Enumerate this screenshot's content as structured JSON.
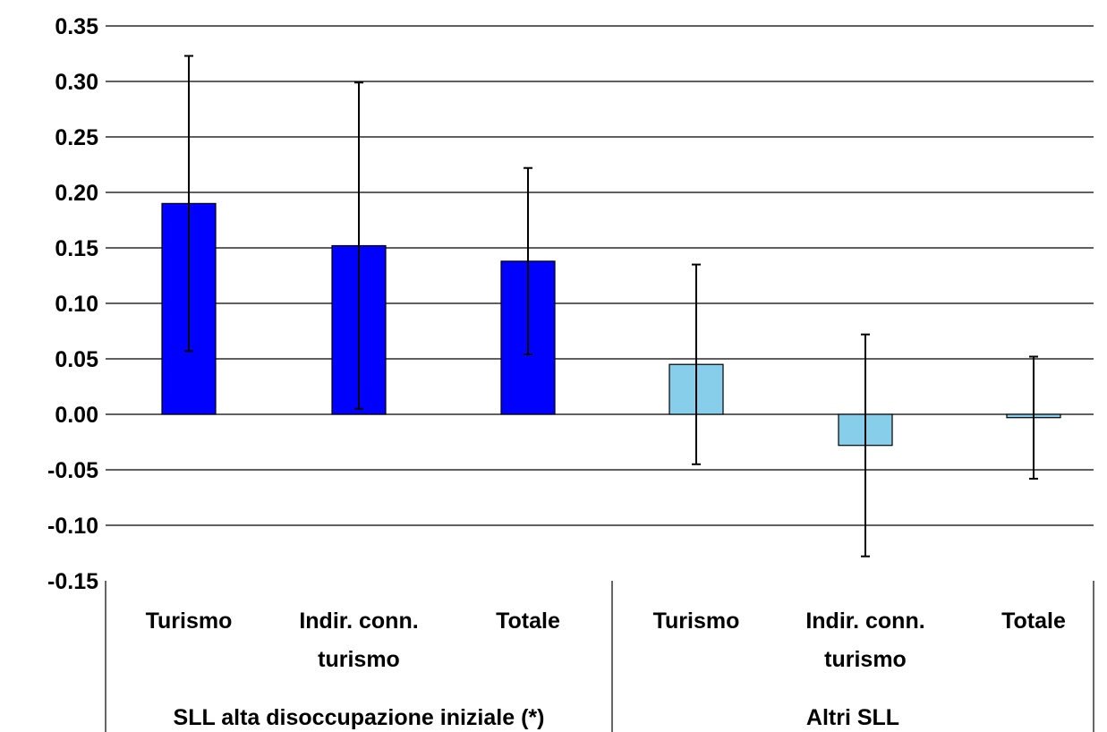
{
  "chart_data": {
    "type": "bar",
    "ylim": [
      -0.15,
      0.35
    ],
    "y_ticks": [
      "0.35",
      "0.30",
      "0.25",
      "0.20",
      "0.15",
      "0.10",
      "0.05",
      "0.00",
      "-0.05",
      "-0.10",
      "-0.15"
    ],
    "grid": true,
    "groups": [
      {
        "label": "SLL alta disoccupazione iniziale (*)",
        "color": "#0000FF",
        "bars": [
          {
            "label": [
              "Turismo"
            ],
            "value": 0.19,
            "err_low": 0.057,
            "err_high": 0.323
          },
          {
            "label": [
              "Indir. conn.",
              "turismo"
            ],
            "value": 0.152,
            "err_low": 0.005,
            "err_high": 0.299
          },
          {
            "label": [
              "Totale"
            ],
            "value": 0.138,
            "err_low": 0.054,
            "err_high": 0.222
          }
        ]
      },
      {
        "label": "Altri SLL",
        "color": "#87CEEB",
        "bars": [
          {
            "label": [
              "Turismo"
            ],
            "value": 0.045,
            "err_low": -0.045,
            "err_high": 0.135
          },
          {
            "label": [
              "Indir. conn.",
              "turismo"
            ],
            "value": -0.028,
            "err_low": -0.128,
            "err_high": 0.072
          },
          {
            "label": [
              "Totale"
            ],
            "value": -0.003,
            "err_low": -0.058,
            "err_high": 0.052
          }
        ]
      }
    ]
  }
}
